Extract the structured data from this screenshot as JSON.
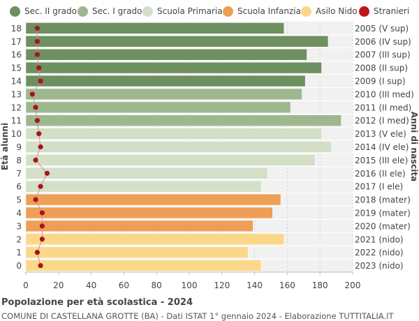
{
  "legend": [
    {
      "label": "Sec. II grado",
      "color": "#6e8f5f"
    },
    {
      "label": "Sec. I grado",
      "color": "#9db88e"
    },
    {
      "label": "Scuola Primaria",
      "color": "#d3dfc6"
    },
    {
      "label": "Scuola Infanzia",
      "color": "#ee9e55"
    },
    {
      "label": "Asilo Nido",
      "color": "#fbd889"
    },
    {
      "label": "Stranieri",
      "color": "#c0151b"
    }
  ],
  "chart_data": {
    "type": "bar",
    "orientation": "horizontal",
    "title": "Popolazione per età scolastica - 2024",
    "subtitle": "COMUNE DI CASTELLANA GROTTE (BA) - Dati ISTAT 1° gennaio 2024 - Elaborazione TUTTITALIA.IT",
    "ylabel_left": "Età alunni",
    "ylabel_right": "Anni di nascita",
    "xlim": [
      0,
      200
    ],
    "xticks": [
      0,
      20,
      40,
      60,
      80,
      100,
      120,
      140,
      160,
      180,
      200
    ],
    "rows": [
      {
        "age": "18",
        "year": "2005 (V sup)",
        "value": 158,
        "stranieri": 7,
        "color": "#6e8f5f"
      },
      {
        "age": "17",
        "year": "2006 (IV sup)",
        "value": 185,
        "stranieri": 7,
        "color": "#6e8f5f"
      },
      {
        "age": "16",
        "year": "2007 (III sup)",
        "value": 172,
        "stranieri": 7,
        "color": "#6e8f5f"
      },
      {
        "age": "15",
        "year": "2008 (II sup)",
        "value": 181,
        "stranieri": 8,
        "color": "#6e8f5f"
      },
      {
        "age": "14",
        "year": "2009 (I sup)",
        "value": 171,
        "stranieri": 9,
        "color": "#6e8f5f"
      },
      {
        "age": "13",
        "year": "2010 (III med)",
        "value": 169,
        "stranieri": 4,
        "color": "#9db88e"
      },
      {
        "age": "12",
        "year": "2011 (II med)",
        "value": 162,
        "stranieri": 6,
        "color": "#9db88e"
      },
      {
        "age": "11",
        "year": "2012 (I med)",
        "value": 193,
        "stranieri": 7,
        "color": "#9db88e"
      },
      {
        "age": "10",
        "year": "2013 (V ele)",
        "value": 181,
        "stranieri": 8,
        "color": "#d3dfc6"
      },
      {
        "age": "9",
        "year": "2014 (IV ele)",
        "value": 187,
        "stranieri": 9,
        "color": "#d3dfc6"
      },
      {
        "age": "8",
        "year": "2015 (III ele)",
        "value": 177,
        "stranieri": 6,
        "color": "#d3dfc6"
      },
      {
        "age": "7",
        "year": "2016 (II ele)",
        "value": 148,
        "stranieri": 13,
        "color": "#d3dfc6"
      },
      {
        "age": "6",
        "year": "2017 (I ele)",
        "value": 144,
        "stranieri": 9,
        "color": "#d3dfc6"
      },
      {
        "age": "5",
        "year": "2018 (mater)",
        "value": 156,
        "stranieri": 6,
        "color": "#ee9e55"
      },
      {
        "age": "4",
        "year": "2019 (mater)",
        "value": 151,
        "stranieri": 10,
        "color": "#ee9e55"
      },
      {
        "age": "3",
        "year": "2020 (mater)",
        "value": 139,
        "stranieri": 10,
        "color": "#ee9e55"
      },
      {
        "age": "2",
        "year": "2021 (nido)",
        "value": 158,
        "stranieri": 10,
        "color": "#fbd889"
      },
      {
        "age": "1",
        "year": "2022 (nido)",
        "value": 136,
        "stranieri": 7,
        "color": "#fbd889"
      },
      {
        "age": "0",
        "year": "2023 (nido)",
        "value": 144,
        "stranieri": 9,
        "color": "#fbd889"
      }
    ]
  }
}
